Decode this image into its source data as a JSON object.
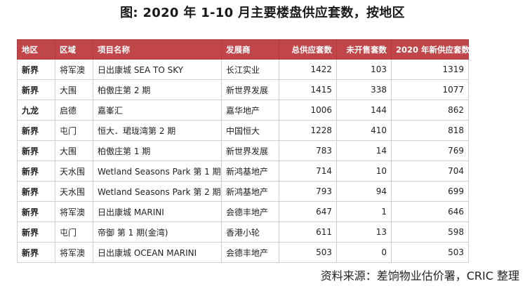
{
  "title": "图: 2020 年 1-10 月主要楼盘供应套数，按地区",
  "table": {
    "headers": [
      "地区",
      "区域",
      "项目名称",
      "发展商",
      "总供应套数",
      "未开售套数",
      "2020 年新供应套数"
    ],
    "rows": [
      [
        "新界",
        "将军澳",
        "日出康城 SEA TO SKY",
        "长江实业",
        "1422",
        "103",
        "1319"
      ],
      [
        "新界",
        "大围",
        "柏傲庄第 2 期",
        "新世界发展",
        "1415",
        "338",
        "1077"
      ],
      [
        "九龙",
        "启德",
        "嘉峯汇",
        "嘉华地产",
        "1006",
        "144",
        "862"
      ],
      [
        "新界",
        "屯门",
        "恒大．珺珑湾第 2 期",
        "中国恒大",
        "1228",
        "410",
        "818"
      ],
      [
        "新界",
        "大围",
        "柏傲庄第 1 期",
        "新世界发展",
        "783",
        "14",
        "769"
      ],
      [
        "新界",
        "天水围",
        "Wetland Seasons Park 第 1 期",
        "新鸿基地产",
        "714",
        "10",
        "704"
      ],
      [
        "新界",
        "天水围",
        "Wetland Seasons Park 第 2 期",
        "新鸿基地产",
        "793",
        "94",
        "699"
      ],
      [
        "新界",
        "将军澳",
        "日出康城 MARINI",
        "会德丰地产",
        "647",
        "1",
        "646"
      ],
      [
        "新界",
        "屯门",
        "帝御 第 1 期(金湾)",
        "香港小轮",
        "611",
        "13",
        "598"
      ],
      [
        "新界",
        "将军澳",
        "日出康城 OCEAN MARINI",
        "会德丰地产",
        "503",
        "0",
        "503"
      ]
    ]
  },
  "source": "资料来源：差饷物业估价署，CRIC 整理",
  "colors": {
    "header_bg": "#c0464a",
    "header_text": "#ffffff",
    "border": "#cfcfcf"
  }
}
